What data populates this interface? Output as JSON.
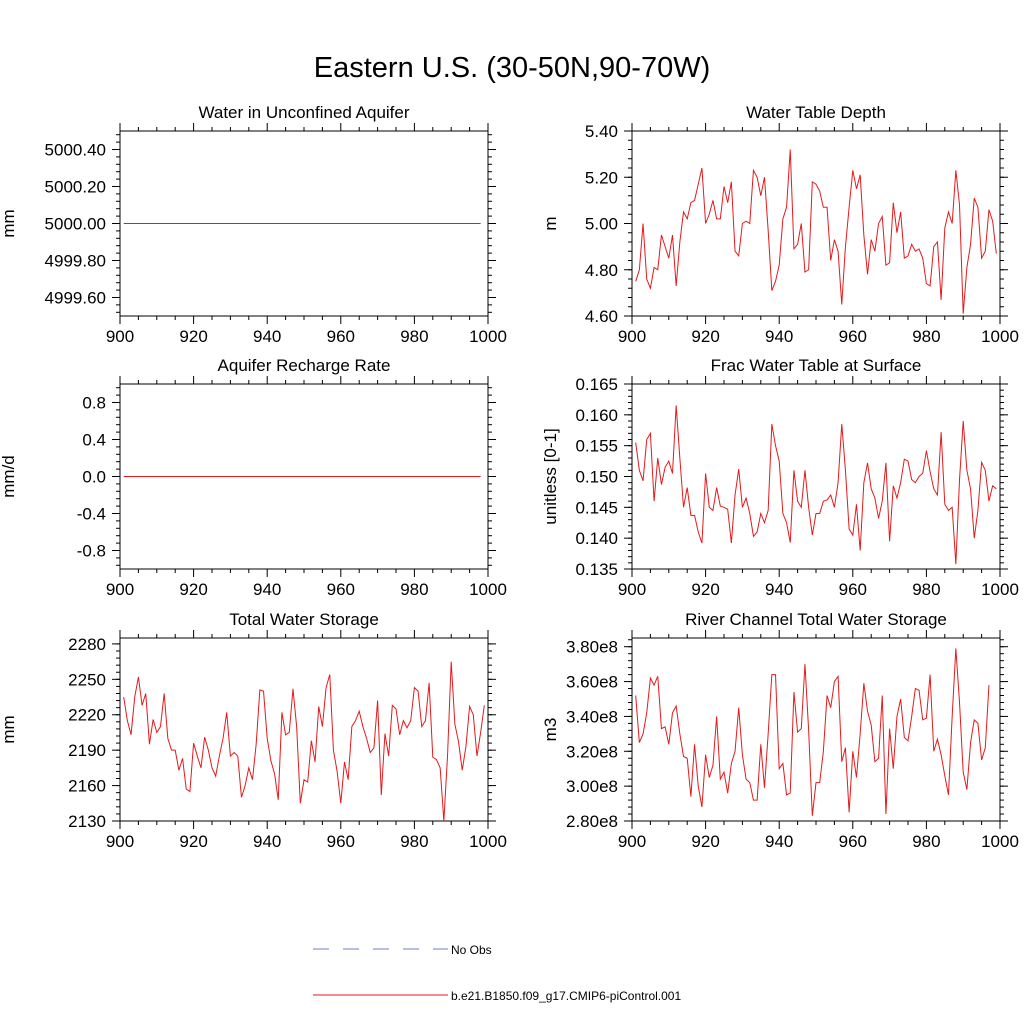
{
  "figure": {
    "title": "Eastern U.S. (30-50N,90-70W)"
  },
  "colors": {
    "model_line": "#e41a1c",
    "obs_line": "#6a7fc6",
    "axis": "#000000"
  },
  "legend": {
    "items": [
      {
        "label": "No Obs",
        "style": "dashed",
        "color": "#6a7fc6"
      },
      {
        "label": "b.e21.B1850.f09_g17.CMIP6-piControl.001",
        "style": "solid",
        "color": "#e41a1c"
      }
    ]
  },
  "chart_data": [
    {
      "type": "line",
      "title": "Water in Unconfined Aquifer",
      "ylabel": "mm",
      "xlabel": "",
      "xlim": [
        900,
        1000
      ],
      "ylim": [
        4999.5,
        5000.5
      ],
      "xticks": [
        900,
        920,
        940,
        960,
        980,
        1000
      ],
      "xtick_labels": [
        "900",
        "920",
        "940",
        "960",
        "980",
        "1000"
      ],
      "yticks": [
        4999.6,
        4999.8,
        5000.0,
        5000.2,
        5000.4
      ],
      "ytick_labels": [
        "4999.60",
        "4999.80",
        "5000.00",
        "5000.20",
        "5000.40"
      ],
      "series": [
        {
          "name": "b.e21.B1850.f09_g17.CMIP6-piControl.001",
          "x_start": 901,
          "x_end": 998,
          "constant": 5000.0
        }
      ]
    },
    {
      "type": "line",
      "title": "Water Table Depth",
      "ylabel": "m",
      "xlabel": "",
      "xlim": [
        900,
        1000
      ],
      "ylim": [
        4.6,
        5.4
      ],
      "xticks": [
        900,
        920,
        940,
        960,
        980,
        1000
      ],
      "xtick_labels": [
        "900",
        "920",
        "940",
        "960",
        "980",
        "1000"
      ],
      "yticks": [
        4.6,
        4.8,
        5.0,
        5.2,
        5.4
      ],
      "ytick_labels": [
        "4.60",
        "4.80",
        "5.00",
        "5.20",
        "5.40"
      ],
      "series": [
        {
          "name": "b.e21.B1850.f09_g17.CMIP6-piControl.001",
          "x_start": 901,
          "values": [
            4.75,
            4.8,
            5.0,
            4.76,
            4.72,
            4.81,
            4.8,
            4.95,
            4.9,
            4.85,
            4.95,
            4.73,
            4.92,
            5.05,
            5.02,
            5.09,
            5.1,
            5.17,
            5.24,
            5.0,
            5.04,
            5.1,
            5.02,
            5.02,
            5.16,
            5.09,
            5.18,
            4.88,
            4.86,
            5.0,
            5.01,
            5.0,
            5.23,
            5.2,
            5.12,
            5.2,
            4.97,
            4.71,
            4.75,
            4.82,
            5.02,
            5.07,
            5.32,
            4.89,
            4.91,
            5.0,
            4.79,
            4.8,
            5.18,
            5.17,
            5.14,
            5.07,
            5.07,
            4.84,
            4.93,
            4.88,
            4.65,
            4.9,
            5.07,
            5.23,
            5.15,
            5.21,
            4.95,
            4.78,
            4.93,
            4.88,
            5.0,
            5.03,
            4.82,
            4.83,
            5.09,
            4.96,
            5.05,
            4.85,
            4.86,
            4.91,
            4.88,
            4.89,
            4.85,
            4.74,
            4.73,
            4.9,
            4.92,
            4.67,
            4.98,
            5.05,
            5.0,
            5.23,
            5.08,
            4.61,
            4.81,
            4.91,
            5.11,
            5.07,
            4.85,
            4.88,
            5.06,
            5.01,
            4.87
          ]
        }
      ]
    },
    {
      "type": "line",
      "title": "Aquifer Recharge Rate",
      "ylabel": "mm/d",
      "xlabel": "",
      "xlim": [
        900,
        1000
      ],
      "ylim": [
        -1.0,
        1.0
      ],
      "xticks": [
        900,
        920,
        940,
        960,
        980,
        1000
      ],
      "xtick_labels": [
        "900",
        "920",
        "940",
        "960",
        "980",
        "1000"
      ],
      "yticks": [
        -0.8,
        -0.4,
        0.0,
        0.4,
        0.8
      ],
      "ytick_labels": [
        "-0.8",
        "-0.4",
        "0.0",
        "0.4",
        "0.8"
      ],
      "series": [
        {
          "name": "b.e21.B1850.f09_g17.CMIP6-piControl.001",
          "x_start": 901,
          "x_end": 998,
          "constant": 0.0
        }
      ]
    },
    {
      "type": "line",
      "title": "Frac Water Table at Surface",
      "ylabel": "unitless [0-1]",
      "xlabel": "",
      "xlim": [
        900,
        1000
      ],
      "ylim": [
        0.135,
        0.165
      ],
      "xticks": [
        900,
        920,
        940,
        960,
        980,
        1000
      ],
      "xtick_labels": [
        "900",
        "920",
        "940",
        "960",
        "980",
        "1000"
      ],
      "yticks": [
        0.135,
        0.14,
        0.145,
        0.15,
        0.155,
        0.16,
        0.165
      ],
      "ytick_labels": [
        "0.135",
        "0.140",
        "0.145",
        "0.150",
        "0.155",
        "0.160",
        "0.165"
      ],
      "series": [
        {
          "name": "b.e21.B1850.f09_g17.CMIP6-piControl.001",
          "x_start": 901,
          "values": [
            0.1555,
            0.151,
            0.1493,
            0.156,
            0.157,
            0.146,
            0.153,
            0.1487,
            0.1515,
            0.1525,
            0.1505,
            0.1615,
            0.153,
            0.145,
            0.1482,
            0.1437,
            0.1437,
            0.141,
            0.1392,
            0.1505,
            0.145,
            0.1445,
            0.1482,
            0.1452,
            0.145,
            0.1447,
            0.1392,
            0.147,
            0.1512,
            0.145,
            0.1465,
            0.144,
            0.1403,
            0.141,
            0.144,
            0.1425,
            0.1445,
            0.1585,
            0.155,
            0.1525,
            0.144,
            0.1425,
            0.1393,
            0.151,
            0.146,
            0.145,
            0.151,
            0.145,
            0.1405,
            0.144,
            0.144,
            0.146,
            0.1462,
            0.147,
            0.145,
            0.149,
            0.1585,
            0.151,
            0.1415,
            0.1405,
            0.1455,
            0.138,
            0.149,
            0.1522,
            0.148,
            0.1465,
            0.1432,
            0.146,
            0.1522,
            0.1395,
            0.1485,
            0.1465,
            0.149,
            0.1528,
            0.1525,
            0.1495,
            0.149,
            0.15,
            0.1505,
            0.1542,
            0.1508,
            0.148,
            0.147,
            0.1572,
            0.1455,
            0.1445,
            0.145,
            0.1358,
            0.1495,
            0.159,
            0.151,
            0.148,
            0.14,
            0.1445,
            0.1523,
            0.151,
            0.146,
            0.1485,
            0.148
          ]
        }
      ]
    },
    {
      "type": "line",
      "title": "Total Water Storage",
      "ylabel": "mm",
      "xlabel": "",
      "xlim": [
        900,
        1000
      ],
      "ylim": [
        2130,
        2285
      ],
      "xticks": [
        900,
        920,
        940,
        960,
        980,
        1000
      ],
      "xtick_labels": [
        "900",
        "920",
        "940",
        "960",
        "980",
        "1000"
      ],
      "yticks": [
        2130,
        2160,
        2190,
        2220,
        2250,
        2280
      ],
      "ytick_labels": [
        "2130",
        "2160",
        "2190",
        "2220",
        "2250",
        "2280"
      ],
      "series": [
        {
          "name": "b.e21.B1850.f09_g17.CMIP6-piControl.001",
          "x_start": 901,
          "values": [
            2235,
            2215,
            2203,
            2235,
            2252,
            2228,
            2238,
            2195,
            2216,
            2205,
            2210,
            2238,
            2200,
            2190,
            2190,
            2173,
            2183,
            2157,
            2155,
            2196,
            2185,
            2175,
            2201,
            2190,
            2175,
            2168,
            2185,
            2200,
            2222,
            2185,
            2188,
            2185,
            2150,
            2160,
            2175,
            2165,
            2195,
            2241,
            2240,
            2200,
            2181,
            2170,
            2148,
            2222,
            2203,
            2205,
            2242,
            2210,
            2145,
            2165,
            2163,
            2198,
            2180,
            2227,
            2210,
            2243,
            2254,
            2190,
            2172,
            2145,
            2180,
            2165,
            2210,
            2215,
            2223,
            2210,
            2200,
            2188,
            2192,
            2232,
            2152,
            2204,
            2185,
            2228,
            2225,
            2203,
            2215,
            2209,
            2215,
            2243,
            2240,
            2210,
            2215,
            2247,
            2184,
            2182,
            2175,
            2130,
            2185,
            2265,
            2212,
            2197,
            2173,
            2193,
            2227,
            2220,
            2185,
            2205,
            2228
          ]
        }
      ]
    },
    {
      "type": "line",
      "title": "River Channel Total Water Storage",
      "ylabel": "m3",
      "xlabel": "",
      "xlim": [
        900,
        1000
      ],
      "ylim": [
        280000000.0,
        385000000.0
      ],
      "xticks": [
        900,
        920,
        940,
        960,
        980,
        1000
      ],
      "xtick_labels": [
        "900",
        "920",
        "940",
        "960",
        "980",
        "1000"
      ],
      "yticks": [
        280000000.0,
        300000000.0,
        320000000.0,
        340000000.0,
        360000000.0,
        380000000.0
      ],
      "ytick_labels": [
        "2.80e8",
        "3.00e8",
        "3.20e8",
        "3.40e8",
        "3.60e8",
        "3.80e8"
      ],
      "series": [
        {
          "name": "b.e21.B1850.f09_g17.CMIP6-piControl.001",
          "x_start": 901,
          "values": [
            352000000.0,
            325000000.0,
            330000000.0,
            342000000.0,
            362000000.0,
            358000000.0,
            363000000.0,
            333000000.0,
            334000000.0,
            324000000.0,
            342000000.0,
            346000000.0,
            330000000.0,
            317000000.0,
            316000000.0,
            294000000.0,
            324000000.0,
            300000000.0,
            288000000.0,
            318000000.0,
            305000000.0,
            312000000.0,
            340000000.0,
            304000000.0,
            308000000.0,
            296000000.0,
            313000000.0,
            320000000.0,
            345000000.0,
            318000000.0,
            304000000.0,
            302000000.0,
            292000000.0,
            292000000.0,
            324000000.0,
            299000000.0,
            330000000.0,
            364000000.0,
            364000000.0,
            310000000.0,
            313000000.0,
            295000000.0,
            296000000.0,
            354000000.0,
            331000000.0,
            333000000.0,
            370000000.0,
            332000000.0,
            283000000.0,
            302000000.0,
            302000000.0,
            320000000.0,
            352000000.0,
            345000000.0,
            360000000.0,
            363000000.0,
            314000000.0,
            322000000.0,
            285000000.0,
            320000000.0,
            305000000.0,
            330000000.0,
            359000000.0,
            343000000.0,
            335000000.0,
            314000000.0,
            316000000.0,
            352000000.0,
            284000000.0,
            333000000.0,
            310000000.0,
            340000000.0,
            350000000.0,
            328000000.0,
            326000000.0,
            340000000.0,
            356000000.0,
            355000000.0,
            338000000.0,
            339000000.0,
            364000000.0,
            320000000.0,
            327000000.0,
            318000000.0,
            306000000.0,
            295000000.0,
            340000000.0,
            379000000.0,
            348000000.0,
            308000000.0,
            298000000.0,
            325000000.0,
            338000000.0,
            336000000.0,
            315000000.0,
            322000000.0,
            358000000.0
          ]
        }
      ]
    }
  ]
}
